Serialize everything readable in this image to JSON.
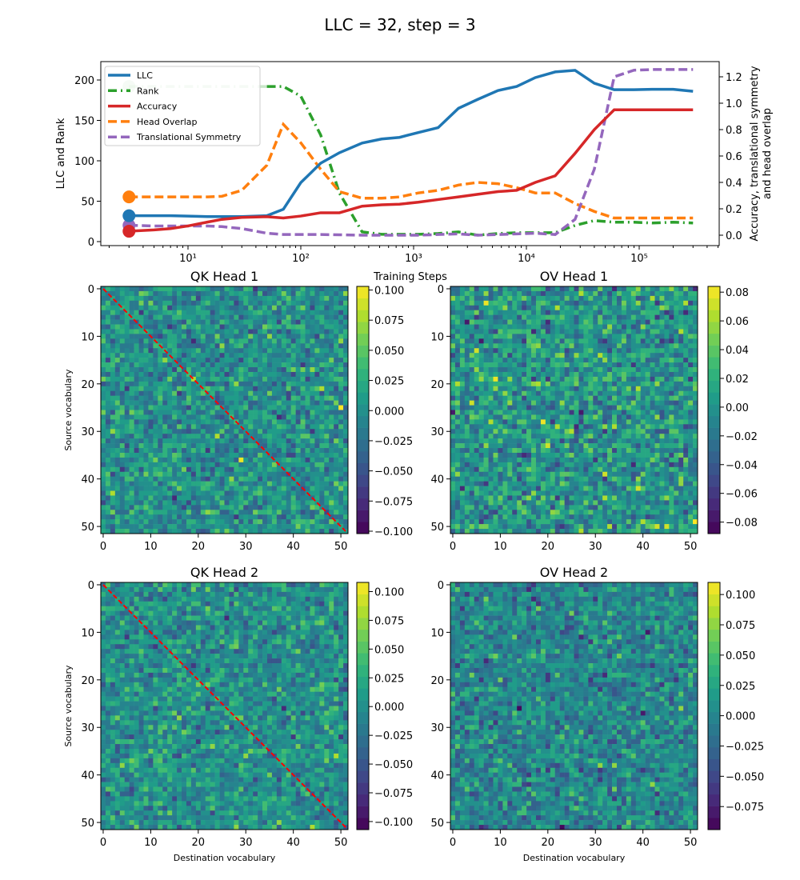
{
  "figure": {
    "title": "LLC = 32, step = 3"
  },
  "colors": {
    "llc": "#1f77b4",
    "rank": "#2ca02c",
    "accuracy": "#d62728",
    "head_overlap": "#ff7f0e",
    "translational_symmetry": "#9467bd",
    "diagonal": "#ff0000"
  },
  "chart_data": [
    {
      "type": "line",
      "xlabel": "Training Steps",
      "ylabel": "LLC and Rank",
      "ylabel_right_1": "Accuracy, translational symmetry",
      "ylabel_right_2": "and head overlap",
      "xscale": "log",
      "xlim": [
        1.7,
        500000
      ],
      "ylim": [
        -5,
        222
      ],
      "ylim_right": [
        -0.07,
        1.38
      ],
      "xticks": [
        10,
        100,
        1000,
        10000,
        100000
      ],
      "xtick_labels": [
        "10¹",
        "10²",
        "10³",
        "10⁴",
        "10⁵"
      ],
      "yticks": [
        0,
        50,
        100,
        150,
        200
      ],
      "yticks_right": [
        0.0,
        0.2,
        0.4,
        0.6,
        0.8,
        1.0,
        1.2
      ],
      "ytick_labels_right": [
        "0.0",
        "0.2",
        "0.4",
        "0.6",
        "0.8",
        "1.0",
        "1.2"
      ],
      "legend_placement": "upper-left",
      "grid": false,
      "marker_at_x": 3,
      "x": [
        3,
        5,
        7,
        10,
        15,
        20,
        30,
        50,
        70,
        100,
        150,
        220,
        350,
        520,
        750,
        1100,
        1650,
        2500,
        3700,
        5600,
        8200,
        12000,
        18000,
        27000,
        40000,
        60000,
        90000,
        130000,
        200000,
        300000
      ],
      "series": [
        {
          "name": "LLC",
          "axis": "left",
          "style": "solid",
          "color": "#1f77b4",
          "values": [
            32,
            32,
            32,
            31.5,
            31,
            31,
            31,
            32,
            40,
            73,
            97,
            110,
            122,
            127,
            129,
            135,
            141,
            165,
            176,
            187,
            192,
            203,
            210,
            212,
            196,
            188,
            188,
            188.5,
            188.5,
            186
          ]
        },
        {
          "name": "Rank",
          "axis": "left",
          "style": "dashdot",
          "color": "#2ca02c",
          "values": [
            192,
            192,
            192,
            192,
            192,
            192,
            192,
            192,
            192,
            180,
            132,
            60,
            12,
            9,
            9,
            9,
            10,
            12,
            8,
            10,
            11,
            11,
            11,
            20,
            26,
            24,
            24,
            23,
            24,
            23
          ]
        },
        {
          "name": "Accuracy",
          "axis": "right",
          "style": "solid",
          "color": "#d62728",
          "values": [
            0.03,
            0.04,
            0.05,
            0.07,
            0.1,
            0.12,
            0.135,
            0.14,
            0.13,
            0.145,
            0.17,
            0.17,
            0.22,
            0.23,
            0.235,
            0.25,
            0.27,
            0.29,
            0.31,
            0.33,
            0.34,
            0.4,
            0.45,
            0.62,
            0.8,
            0.95,
            0.95,
            0.95,
            0.95,
            0.95
          ]
        },
        {
          "name": "Head Overlap",
          "axis": "right",
          "style": "dashed",
          "color": "#ff7f0e",
          "values": [
            0.29,
            0.29,
            0.29,
            0.29,
            0.29,
            0.295,
            0.34,
            0.53,
            0.84,
            0.7,
            0.5,
            0.33,
            0.28,
            0.28,
            0.29,
            0.32,
            0.34,
            0.38,
            0.4,
            0.39,
            0.36,
            0.32,
            0.32,
            0.24,
            0.18,
            0.13,
            0.13,
            0.13,
            0.13,
            0.13
          ]
        },
        {
          "name": "Translational Symmetry",
          "axis": "right",
          "style": "dashed",
          "color": "#9467bd",
          "values": [
            0.075,
            0.07,
            0.07,
            0.07,
            0.07,
            0.065,
            0.05,
            0.015,
            0.005,
            0.005,
            0.005,
            0.003,
            0,
            0,
            0,
            0,
            0.005,
            0.01,
            0,
            0.005,
            0.01,
            0.015,
            0.005,
            0.12,
            0.5,
            1.2,
            1.25,
            1.255,
            1.255,
            1.255
          ]
        }
      ]
    },
    {
      "type": "heatmap",
      "title": "QK Head 1",
      "ylabel": "Source vocabulary",
      "xlabel": "",
      "size": 52,
      "colormap": "viridis",
      "vmin": -0.102,
      "vmax": 0.103,
      "std": 0.025,
      "diagonal": true,
      "seed": 11,
      "ticks": [
        0,
        10,
        20,
        30,
        40,
        50
      ],
      "cbar_ticks": [
        0.1,
        0.075,
        0.05,
        0.025,
        0,
        -0.025,
        -0.05,
        -0.075,
        -0.1
      ],
      "cbar_labels": [
        "0.100",
        "0.075",
        "0.050",
        "0.025",
        "0.000",
        "−0.025",
        "−0.050",
        "−0.075",
        "−0.100"
      ]
    },
    {
      "type": "heatmap",
      "title": "OV Head 1",
      "ylabel": "",
      "xlabel": "",
      "size": 52,
      "colormap": "viridis",
      "vmin": -0.088,
      "vmax": 0.084,
      "std": 0.025,
      "diagonal": false,
      "seed": 23,
      "ticks": [
        0,
        10,
        20,
        30,
        40,
        50
      ],
      "cbar_ticks": [
        0.08,
        0.06,
        0.04,
        0.02,
        0,
        -0.02,
        -0.04,
        -0.06,
        -0.08
      ],
      "cbar_labels": [
        "0.08",
        "0.06",
        "0.04",
        "0.02",
        "0.00",
        "−0.02",
        "−0.04",
        "−0.06",
        "−0.08"
      ]
    },
    {
      "type": "heatmap",
      "title": "QK Head 2",
      "ylabel": "Source vocabulary",
      "xlabel": "Destination vocabulary",
      "size": 52,
      "colormap": "viridis",
      "vmin": -0.107,
      "vmax": 0.108,
      "std": 0.025,
      "diagonal": true,
      "seed": 37,
      "ticks": [
        0,
        10,
        20,
        30,
        40,
        50
      ],
      "cbar_ticks": [
        0.1,
        0.075,
        0.05,
        0.025,
        0,
        -0.025,
        -0.05,
        -0.075,
        -0.1
      ],
      "cbar_labels": [
        "0.100",
        "0.075",
        "0.050",
        "0.025",
        "0.000",
        "−0.025",
        "−0.050",
        "−0.075",
        "−0.100"
      ]
    },
    {
      "type": "heatmap",
      "title": "OV Head 2",
      "ylabel": "",
      "xlabel": "Destination vocabulary",
      "size": 52,
      "colormap": "viridis",
      "vmin": -0.094,
      "vmax": 0.11,
      "std": 0.025,
      "diagonal": false,
      "seed": 53,
      "ticks": [
        0,
        10,
        20,
        30,
        40,
        50
      ],
      "cbar_ticks": [
        0.1,
        0.075,
        0.05,
        0.025,
        0,
        -0.025,
        -0.05,
        -0.075
      ],
      "cbar_labels": [
        "0.100",
        "0.075",
        "0.050",
        "0.025",
        "0.000",
        "−0.025",
        "−0.050",
        "−0.075"
      ]
    }
  ]
}
